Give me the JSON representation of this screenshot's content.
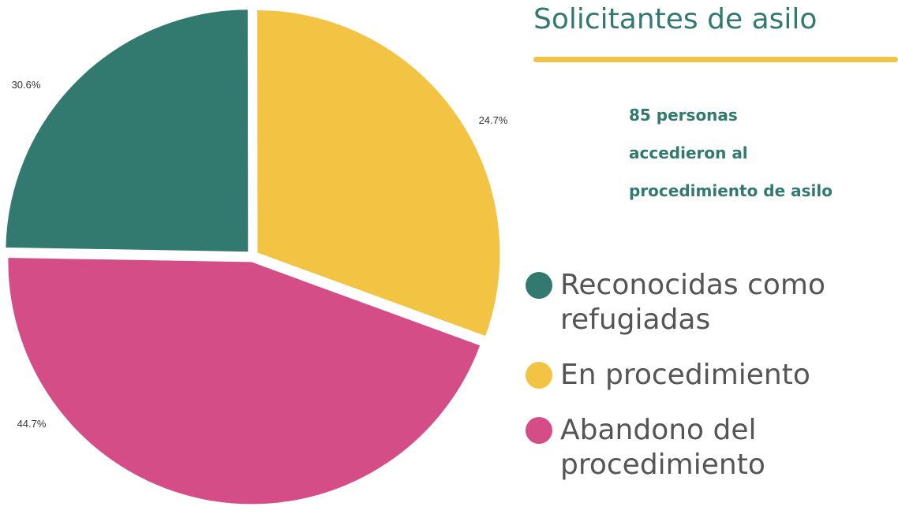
{
  "chart_data": {
    "type": "pie",
    "title": "Solicitantes de asilo",
    "note": [
      "85 personas",
      "accedieron al",
      "procedimiento de asilo"
    ],
    "series": [
      {
        "name": "Reconocidas como refugiadas",
        "color": "#327a70",
        "values": [
          24.7
        ],
        "value_labels": [
          "24.7%"
        ]
      },
      {
        "name": "En procedimiento",
        "color": "#f3c443",
        "values": [
          30.6
        ],
        "value_labels": [
          "30.6%"
        ]
      },
      {
        "name": "Abandono del procedimiento",
        "color": "#d54d87",
        "values": [
          44.7
        ],
        "value_labels": [
          "44.7%"
        ]
      }
    ]
  }
}
